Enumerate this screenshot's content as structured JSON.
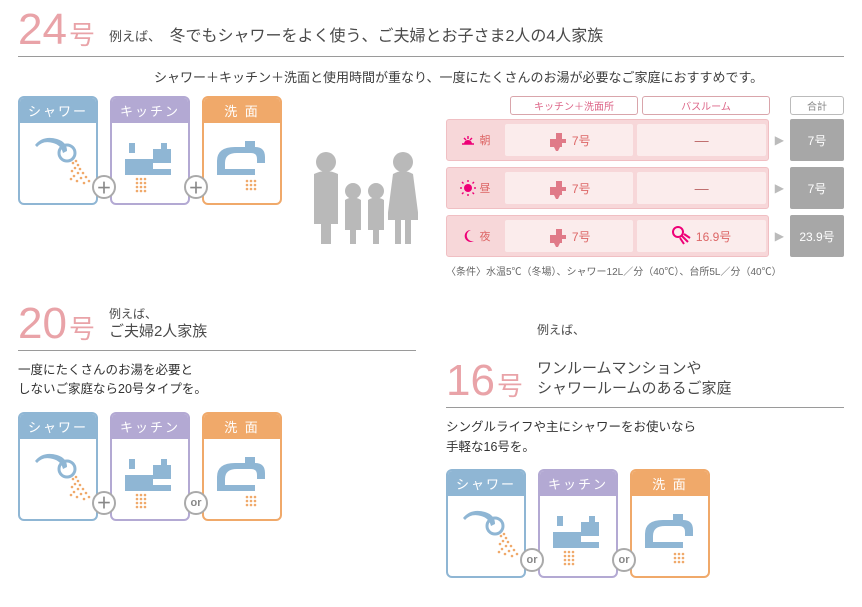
{
  "colors": {
    "pink": "#e9a3a8",
    "blue": "#8fb6d4",
    "purple": "#b3a9d3",
    "orange": "#f0a96a",
    "rowbg": "#f7d7d9",
    "cellbg": "#fbecec",
    "totalbg": "#a7a7a7"
  },
  "fixtures": {
    "shower": {
      "label": "シャワー",
      "color": "#8fb6d4"
    },
    "kitchen": {
      "label": "キッチン",
      "color": "#b3a9d3"
    },
    "washbasin": {
      "label": "洗 面",
      "color": "#f0a96a"
    }
  },
  "joiners": {
    "plus": "＋",
    "or": "or"
  },
  "s24": {
    "num": "24",
    "suffix": "号",
    "lead_pre": "例えば、",
    "lead": "冬でもシャワーをよく使う、ご夫婦とお子さま2人の4人家族",
    "sub": "シャワー＋キッチン＋洗面と使用時間が重なり、一度にたくさんのお湯が必要なご家庭におすすめです。",
    "usage_headers": {
      "kb": "キッチン＋洗面所",
      "bath": "バスルーム",
      "total": "合計"
    },
    "rows": [
      {
        "time": "朝",
        "icon": "sunrise",
        "kb": "7号",
        "bath": "—",
        "total": "7号"
      },
      {
        "time": "昼",
        "icon": "sun",
        "kb": "7号",
        "bath": "—",
        "total": "7号"
      },
      {
        "time": "夜",
        "icon": "moon",
        "kb": "7号",
        "bath": "16.9号",
        "total": "23.9号"
      }
    ],
    "cond": "〈条件〉水温5℃（冬場）、シャワー12L／分（40℃）、台所5L／分（40℃）"
  },
  "s20": {
    "num": "20",
    "suffix": "号",
    "lead_pre": "例えば、",
    "lead": "ご夫婦2人家族",
    "desc": "一度にたくさんのお湯を必要と\nしないご家庭なら20号タイプを。",
    "joiners": [
      "plus",
      "or"
    ]
  },
  "s16": {
    "num": "16",
    "suffix": "号",
    "lead_pre": "例えば、",
    "lead": "ワンルームマンションや\nシャワールームのあるご家庭",
    "desc": "シングルライフや主にシャワーをお使いなら\n手軽な16号を。",
    "joiners": [
      "or",
      "or"
    ]
  }
}
